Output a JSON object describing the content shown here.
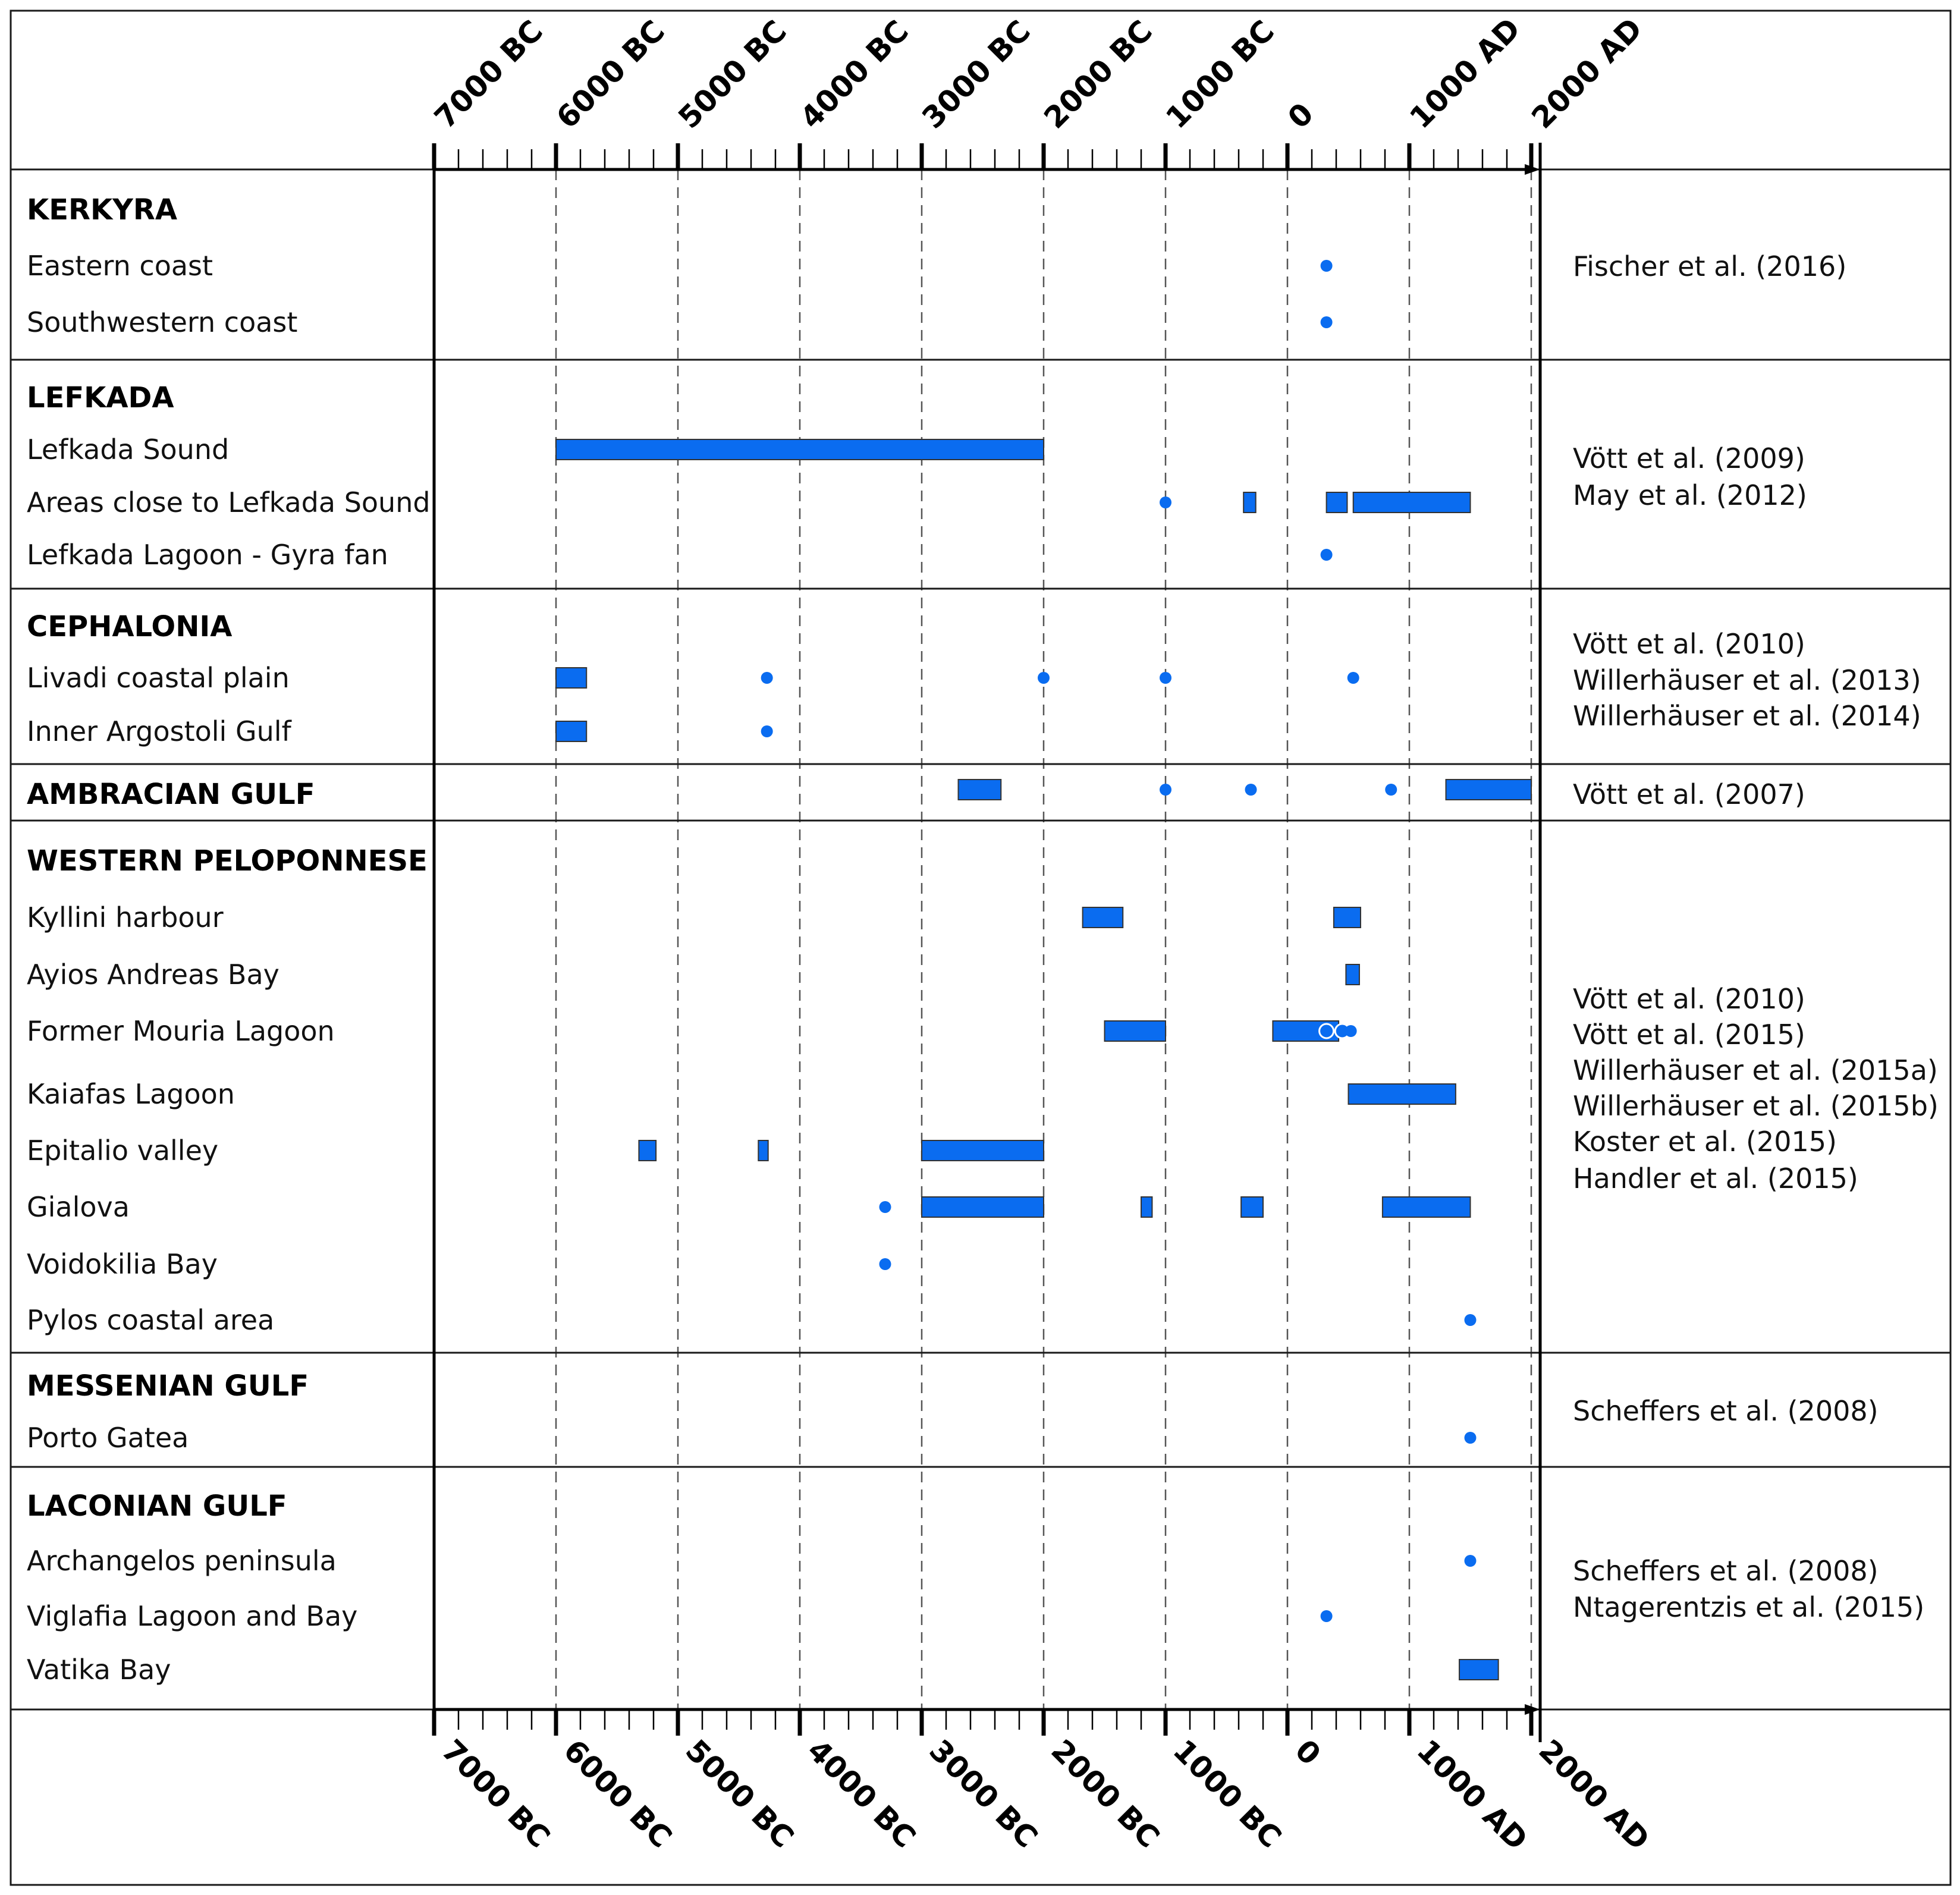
{
  "chart_data": {
    "type": "timeline",
    "xlim": [
      -7000,
      2000
    ],
    "tick_labels": [
      {
        "value": -7000,
        "label": "7000 BC"
      },
      {
        "value": -6000,
        "label": "6000 BC"
      },
      {
        "value": -5000,
        "label": "5000 BC"
      },
      {
        "value": -4000,
        "label": "4000 BC"
      },
      {
        "value": -3000,
        "label": "3000 BC"
      },
      {
        "value": -2000,
        "label": "2000 BC"
      },
      {
        "value": -1000,
        "label": "1000 BC"
      },
      {
        "value": 0,
        "label": "0"
      },
      {
        "value": 1000,
        "label": "1000 AD"
      },
      {
        "value": 2000,
        "label": "2000 AD"
      }
    ],
    "minor_tick_step": 200,
    "grid": true,
    "groups": [
      {
        "name": "KERKYRA",
        "references": [
          "Fischer et al. (2016)"
        ],
        "sites": [
          {
            "name": "Eastern coast",
            "events": [
              {
                "kind": "point",
                "year": 320
              }
            ]
          },
          {
            "name": "Southwestern coast",
            "events": [
              {
                "kind": "point",
                "year": 320
              }
            ]
          }
        ]
      },
      {
        "name": "LEFKADA",
        "references": [
          "Vött et al. (2009)",
          "May et al. (2012)"
        ],
        "sites": [
          {
            "name": "Lefkada Sound",
            "events": [
              {
                "kind": "range",
                "from": -6000,
                "to": -2000
              }
            ]
          },
          {
            "name": "Areas close to Lefkada Sound",
            "events": [
              {
                "kind": "point",
                "year": -1000
              },
              {
                "kind": "range",
                "from": -360,
                "to": -260
              },
              {
                "kind": "range",
                "from": 320,
                "to": 490
              },
              {
                "kind": "range",
                "from": 540,
                "to": 1500
              }
            ]
          },
          {
            "name": "Lefkada Lagoon - Gyra fan",
            "events": [
              {
                "kind": "point",
                "year": 320
              }
            ]
          }
        ]
      },
      {
        "name": "CEPHALONIA",
        "references": [
          "Vött et al. (2010)",
          "Willerhäuser et al. (2013)",
          "Willerhäuser et al. (2014)"
        ],
        "sites": [
          {
            "name": "Livadi coastal plain",
            "events": [
              {
                "kind": "range",
                "from": -6000,
                "to": -5750
              },
              {
                "kind": "point",
                "year": -4270
              },
              {
                "kind": "point",
                "year": -2000
              },
              {
                "kind": "point",
                "year": -1000
              },
              {
                "kind": "point",
                "year": 540
              }
            ]
          },
          {
            "name": "Inner Argostoli Gulf",
            "events": [
              {
                "kind": "range",
                "from": -6000,
                "to": -5750
              },
              {
                "kind": "point",
                "year": -4270
              }
            ]
          }
        ]
      },
      {
        "name": "AMBRACIAN GULF",
        "references": [
          "Vött et al. (2007)"
        ],
        "sites": [
          {
            "name": "",
            "events": [
              {
                "kind": "range",
                "from": -2700,
                "to": -2350
              },
              {
                "kind": "point",
                "year": -1000
              },
              {
                "kind": "point",
                "year": -300
              },
              {
                "kind": "point",
                "year": 850
              },
              {
                "kind": "range",
                "from": 1300,
                "to": 2000
              }
            ]
          }
        ]
      },
      {
        "name": "WESTERN PELOPONNESE",
        "references": [
          "Vött et al. (2010)",
          "Vött et al. (2015)",
          "Willerhäuser et al. (2015a)",
          "Willerhäuser et al. (2015b)",
          "Koster et al. (2015)",
          "Handler et al. (2015)"
        ],
        "sites": [
          {
            "name": "Kyllini harbour",
            "events": [
              {
                "kind": "range",
                "from": -1680,
                "to": -1350
              },
              {
                "kind": "range",
                "from": 380,
                "to": 600
              }
            ]
          },
          {
            "name": "Ayios Andreas Bay",
            "events": [
              {
                "kind": "range",
                "from": 480,
                "to": 590
              }
            ]
          },
          {
            "name": "Former Mouria Lagoon",
            "events": [
              {
                "kind": "range",
                "from": -1500,
                "to": -1000
              },
              {
                "kind": "range",
                "from": -120,
                "to": 420
              },
              {
                "kind": "open-point",
                "year": 320
              },
              {
                "kind": "open-point",
                "year": 450
              },
              {
                "kind": "point",
                "year": 520
              }
            ]
          },
          {
            "name": "Kaiafas Lagoon",
            "events": [
              {
                "kind": "range",
                "from": 500,
                "to": 1380
              }
            ]
          },
          {
            "name": "Epitalio valley",
            "events": [
              {
                "kind": "range",
                "from": -5320,
                "to": -5180
              },
              {
                "kind": "range",
                "from": -4340,
                "to": -4260
              },
              {
                "kind": "range",
                "from": -3000,
                "to": -2000
              }
            ]
          },
          {
            "name": "Gialova",
            "events": [
              {
                "kind": "point",
                "year": -3300
              },
              {
                "kind": "range",
                "from": -3000,
                "to": -2000
              },
              {
                "kind": "range",
                "from": -1200,
                "to": -1110
              },
              {
                "kind": "range",
                "from": -380,
                "to": -200
              },
              {
                "kind": "range",
                "from": 780,
                "to": 1500
              }
            ]
          },
          {
            "name": "Voidokilia Bay",
            "events": [
              {
                "kind": "point",
                "year": -3300
              }
            ]
          },
          {
            "name": "Pylos coastal area",
            "events": [
              {
                "kind": "point",
                "year": 1500
              }
            ]
          }
        ]
      },
      {
        "name": "MESSENIAN GULF",
        "references": [
          "Scheffers et al. (2008)"
        ],
        "sites": [
          {
            "name": "Porto Gatea",
            "events": [
              {
                "kind": "point",
                "year": 1500
              }
            ]
          }
        ]
      },
      {
        "name": "LACONIAN GULF",
        "references": [
          "Scheffers et al. (2008)",
          "Ntagerentzis et al. (2015)"
        ],
        "sites": [
          {
            "name": "Archangelos peninsula",
            "events": [
              {
                "kind": "point",
                "year": 1500
              }
            ]
          },
          {
            "name": "Viglafia Lagoon and Bay",
            "events": [
              {
                "kind": "point",
                "year": 320
              }
            ]
          },
          {
            "name": "Vatika Bay",
            "events": [
              {
                "kind": "range",
                "from": 1410,
                "to": 1730
              }
            ]
          }
        ]
      }
    ],
    "colors": {
      "marker": "#0a6cf0"
    }
  }
}
